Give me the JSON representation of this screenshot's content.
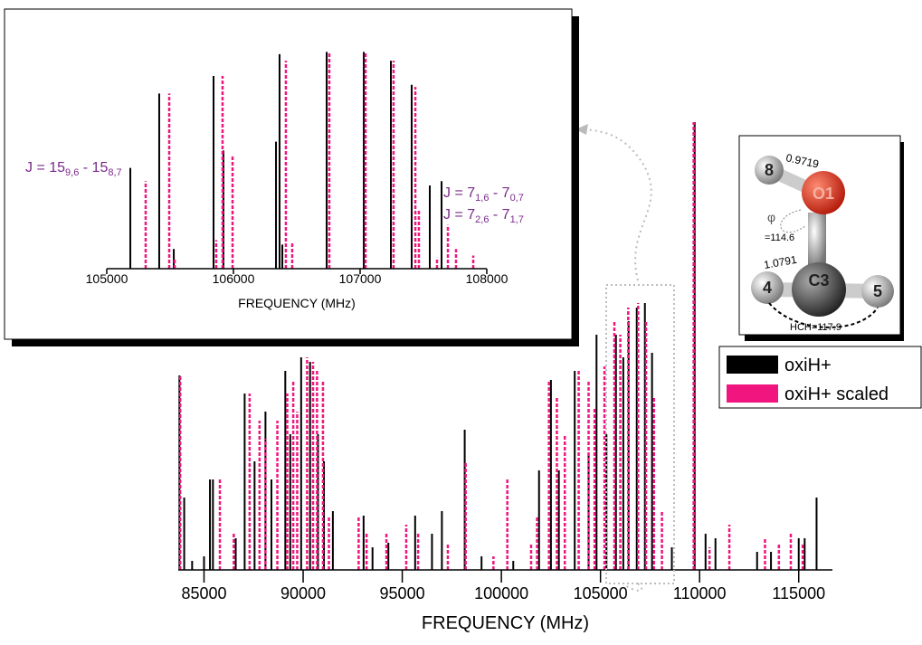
{
  "chart_data": [
    {
      "type": "stick",
      "x_label": "FREQUENCY  (MHz)",
      "xlim": [
        83700,
        116700
      ],
      "ylim": [
        0,
        100
      ],
      "xticks": [
        85000,
        90000,
        95000,
        100000,
        105000,
        110000,
        115000
      ],
      "legend": "right",
      "series": [
        {
          "name": "oxiH+",
          "color": "#000000",
          "dashed": false,
          "x": [
            83760,
            84000,
            84400,
            85000,
            85300,
            85450,
            86600,
            87050,
            87550,
            88100,
            88400,
            89100,
            89350,
            89900,
            90350,
            90750,
            91050,
            91500,
            93050,
            93500,
            94300,
            95650,
            96500,
            97000,
            98150,
            99000,
            100600,
            101900,
            102500,
            102900,
            103700,
            104400,
            104800,
            105300,
            105780,
            106150,
            106420,
            106830,
            107240,
            107600,
            108600,
            109750,
            110300,
            110800,
            112900,
            113600,
            115000,
            115300,
            115900
          ],
          "values": [
            43,
            16,
            2,
            3,
            20,
            20,
            7,
            39,
            24,
            35,
            20,
            44,
            30,
            47,
            46,
            30,
            24,
            13,
            12,
            5,
            6,
            12,
            8,
            13,
            31,
            3,
            2,
            22,
            42,
            22,
            44,
            26,
            52,
            30,
            52,
            47,
            55,
            58,
            59,
            48,
            5,
            99,
            8,
            7,
            4,
            4,
            7,
            7,
            16
          ]
        },
        {
          "name": "oxiH+ scaled",
          "color": "#f0157f",
          "dashed": true,
          "x": [
            83800,
            85800,
            86500,
            87300,
            87800,
            88100,
            88700,
            89200,
            89500,
            89700,
            90200,
            90500,
            90700,
            91000,
            91300,
            92800,
            93200,
            94200,
            95200,
            95800,
            97300,
            98200,
            99600,
            100300,
            101500,
            101800,
            102400,
            102800,
            103200,
            103900,
            104400,
            104700,
            105200,
            105700,
            106000,
            106400,
            106900,
            107300,
            107700,
            108100,
            109700,
            110500,
            111500,
            113300,
            114000,
            114600,
            115200
          ],
          "values": [
            43,
            20,
            8,
            39,
            33,
            29,
            33,
            39,
            42,
            35,
            47,
            46,
            44,
            42,
            12,
            12,
            8,
            8,
            10,
            8,
            6,
            24,
            3,
            20,
            6,
            12,
            42,
            38,
            30,
            44,
            42,
            36,
            45,
            55,
            52,
            58,
            59,
            55,
            38,
            13,
            99,
            5,
            10,
            7,
            6,
            8,
            6
          ]
        }
      ]
    },
    {
      "type": "stick",
      "x_label": "FREQUENCY  (MHz)",
      "xlim": [
        105000,
        108000
      ],
      "ylim": [
        0,
        100
      ],
      "xticks": [
        105000,
        106000,
        107000,
        108000
      ],
      "annotations": [
        {
          "parts": [
            "J = 15",
            "9,6",
            " - 15",
            "8,7"
          ]
        },
        {
          "parts": [
            "J = 7",
            "1,6",
            " - 7",
            "0,7"
          ]
        },
        {
          "parts": [
            "J = 7",
            "2,6",
            " - 7",
            "1,7"
          ]
        }
      ],
      "series": [
        {
          "name": "oxiH+",
          "color": "#000000",
          "dashed": false,
          "x": [
            105186,
            105414,
            105529,
            105843,
            105921,
            106336,
            106364,
            106386,
            106736,
            107029,
            107243,
            107407,
            107550,
            107643
          ],
          "values": [
            46,
            80,
            9,
            88,
            54,
            58,
            98,
            11,
            99,
            99,
            95,
            84,
            38,
            40
          ]
        },
        {
          "name": "oxiH+ scaled",
          "color": "#f0157f",
          "dashed": true,
          "x": [
            105307,
            105493,
            105536,
            105864,
            105914,
            105993,
            106414,
            106464,
            106757,
            107043,
            107264,
            107436,
            107464,
            107607,
            107693,
            107757,
            107893
          ],
          "values": [
            40,
            80,
            5,
            13,
            88,
            52,
            95,
            12,
            99,
            99,
            95,
            83,
            27,
            5,
            20,
            9,
            6
          ]
        }
      ]
    }
  ],
  "molecule": {
    "labels": [
      "8",
      "O1",
      "4",
      "C3",
      "5",
      "0.9719",
      "φ",
      "=114.6",
      "1.0791",
      "HCH=117.9"
    ]
  }
}
